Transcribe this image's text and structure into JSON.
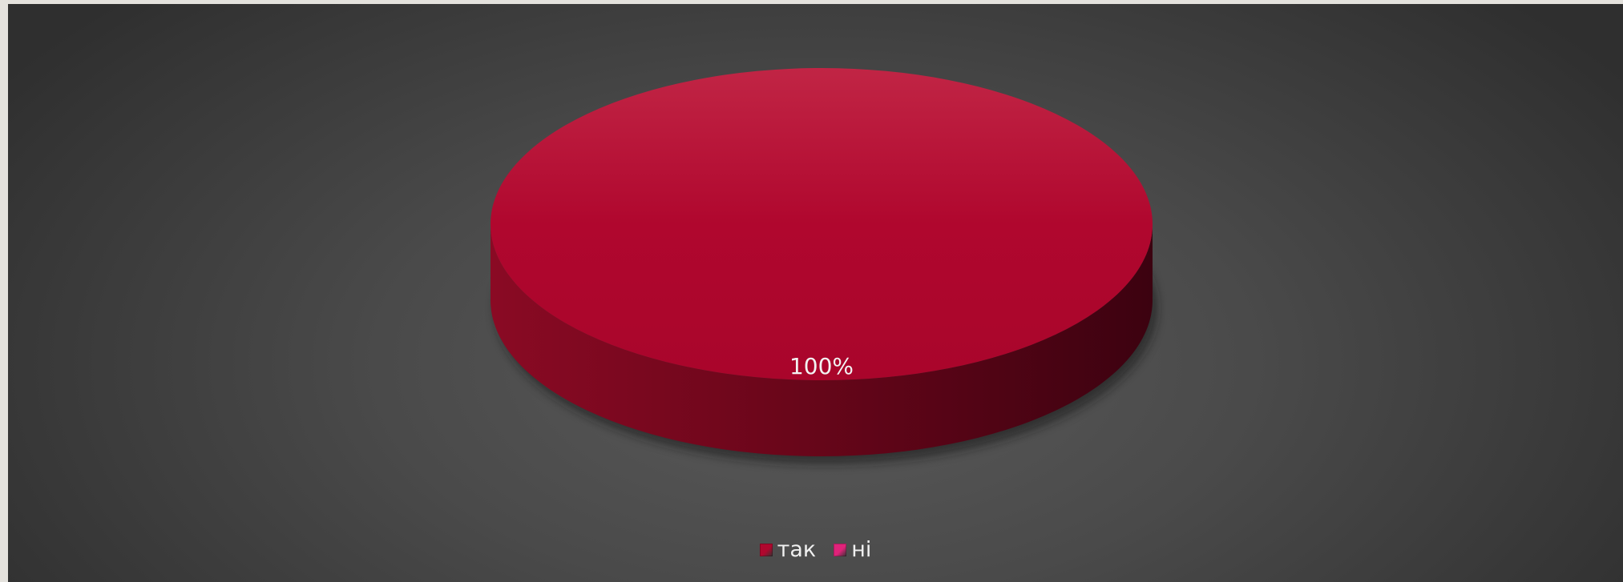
{
  "chart_data": {
    "type": "pie",
    "categories": [
      "так",
      "ні"
    ],
    "values": [
      100,
      0
    ],
    "data_labels": [
      "100%"
    ],
    "colors": [
      "#b0072e",
      "#e0237a"
    ],
    "legend_position": "bottom",
    "three_d": true
  },
  "legend": {
    "items": [
      {
        "label": "так",
        "color": "#b0072e"
      },
      {
        "label": "ні",
        "color": "#e0237a"
      }
    ]
  }
}
